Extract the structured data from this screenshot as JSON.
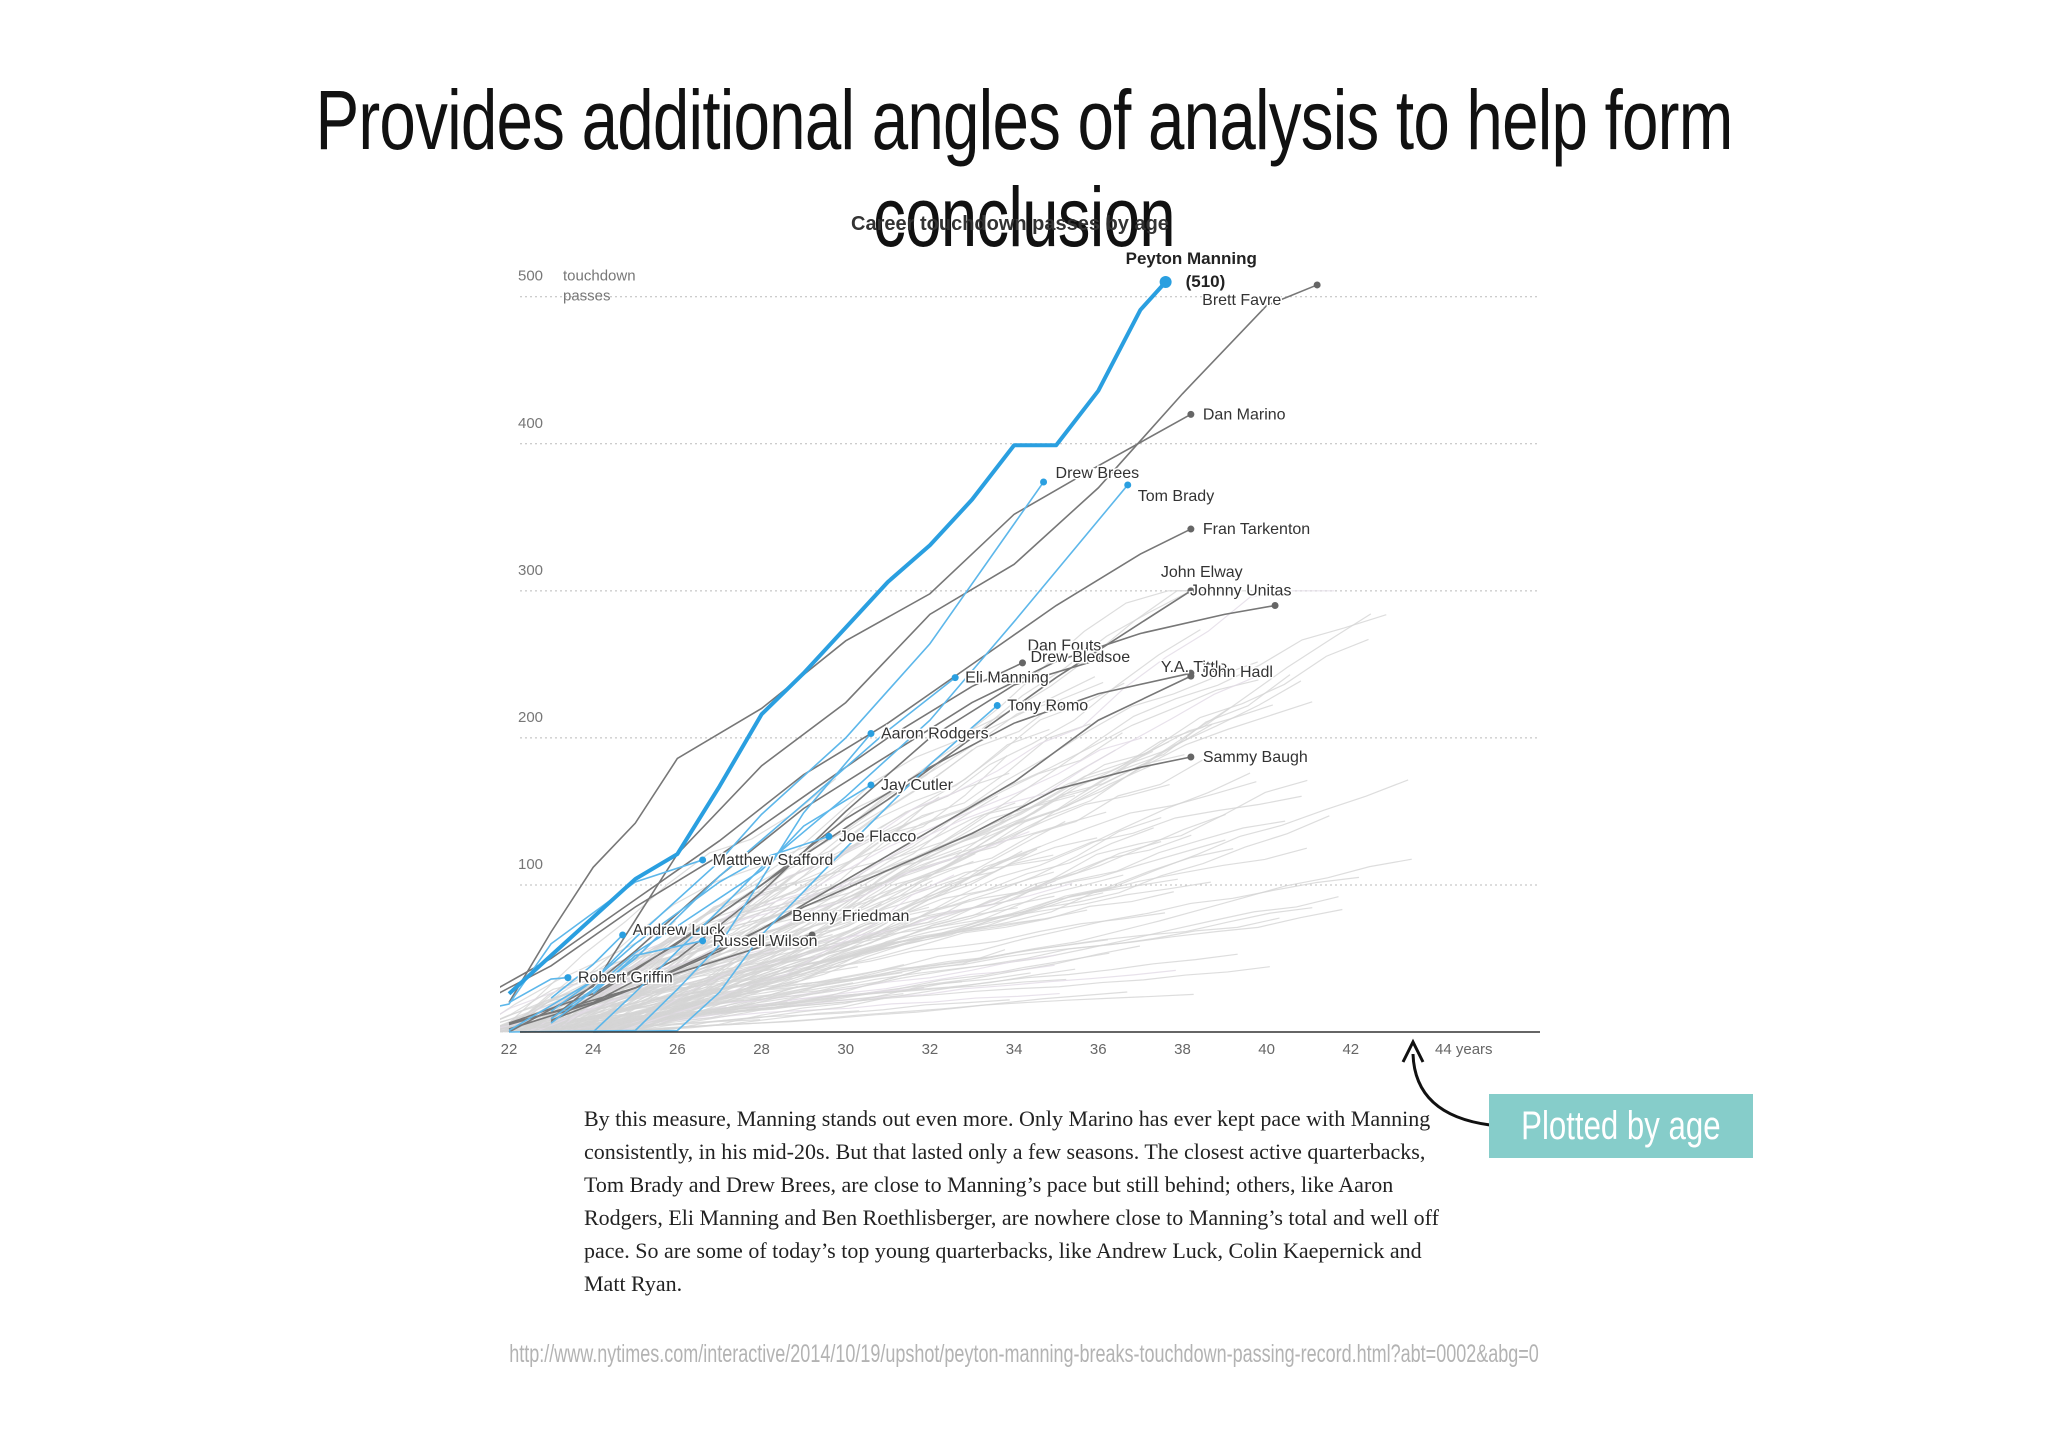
{
  "slide": {
    "title": "Provides additional angles of analysis to help form conclusion",
    "caption": "By this measure, Manning stands out even more. Only Marino has ever kept pace with Manning consistently, in his mid-20s. But that lasted only a few seasons. The closest active quarterbacks, Tom Brady and Drew Brees, are close to Manning’s pace but still behind; others, like Aaron Rodgers, Eli Manning and Ben Roethlisberger, are nowhere close to Manning’s total and well off pace. So are some of today’s top young quarterbacks, like Andrew Luck, Colin Kaepernick and Matt Ryan.",
    "callout": "Plotted by age",
    "source": "http://www.nytimes.com/interactive/2014/10/19/upshot/peyton-manning-breaks-touchdown-passing-record.html?abt=0002&abg=0"
  },
  "colors": {
    "active": "#2a9fe0",
    "active_light": "#5db7ea",
    "retired": "#777777",
    "background_lines": "#d4d4d4",
    "callout_bg": "#86cdca"
  },
  "chart_data": {
    "type": "line",
    "title": "Career touchdown passes by age",
    "ylabel": "touchdown passes",
    "xlabel": "years",
    "xlim": [
      21.8,
      45.5
    ],
    "ylim": [
      0,
      510
    ],
    "x_ticks": [
      22,
      24,
      26,
      28,
      30,
      32,
      34,
      36,
      38,
      40,
      42,
      44
    ],
    "x_tick_labels": [
      "22",
      "24",
      "26",
      "28",
      "30",
      "32",
      "34",
      "36",
      "38",
      "40",
      "42",
      "44 years"
    ],
    "y_ticks": [
      100,
      200,
      300,
      400,
      500
    ],
    "y_tick_labels": [
      "100",
      "200",
      "300",
      "400",
      "500"
    ],
    "grid": true,
    "highlight": {
      "name": "Peyton Manning",
      "label_value": "(510)",
      "x": [
        22,
        23,
        24,
        25,
        26,
        27,
        28,
        29,
        30,
        31,
        32,
        33,
        34,
        35,
        36,
        37,
        37.6
      ],
      "y": [
        26,
        52,
        78,
        104,
        121,
        167,
        216,
        244,
        275,
        306,
        331,
        362,
        399,
        399,
        436,
        491,
        510
      ]
    },
    "series": [
      {
        "name": "Brett Favre",
        "group": "retired",
        "label_value": "",
        "x": [
          22,
          24,
          26,
          28,
          30,
          32,
          34,
          36,
          38,
          40,
          41.2
        ],
        "y": [
          0,
          31,
          121,
          181,
          224,
          284,
          318,
          370,
          434,
          494,
          508
        ]
      },
      {
        "name": "Dan Marino",
        "group": "retired",
        "x": [
          22,
          23,
          24,
          25,
          26,
          28,
          30,
          32,
          34,
          36,
          38.2
        ],
        "y": [
          20,
          68,
          112,
          142,
          186,
          220,
          266,
          298,
          352,
          385,
          420
        ]
      },
      {
        "name": "Fran Tarkenton",
        "group": "retired",
        "x": [
          21,
          23,
          25,
          27,
          29,
          31,
          33,
          35,
          37,
          38.2
        ],
        "y": [
          18,
          50,
          90,
          130,
          175,
          210,
          250,
          290,
          325,
          342
        ]
      },
      {
        "name": "John Elway",
        "group": "retired",
        "x": [
          23,
          25,
          27,
          29,
          31,
          33,
          35,
          37,
          38.2
        ],
        "y": [
          7,
          42,
          80,
          120,
          158,
          200,
          241,
          278,
          300
        ]
      },
      {
        "name": "Johnny Unitas",
        "group": "retired",
        "x": [
          23,
          25,
          27,
          29,
          31,
          33,
          35,
          37,
          39,
          40.2
        ],
        "y": [
          9,
          55,
          106,
          152,
          188,
          224,
          252,
          271,
          284,
          290
        ]
      },
      {
        "name": "Dan Fouts",
        "group": "retired",
        "x": [
          22,
          24,
          26,
          28,
          30,
          32,
          34,
          36.1
        ],
        "y": [
          6,
          20,
          50,
          95,
          150,
          200,
          236,
          254
        ]
      },
      {
        "name": "Drew Bledsoe",
        "group": "retired",
        "x": [
          21,
          23,
          25,
          27,
          29,
          31,
          33,
          34.2
        ],
        "y": [
          15,
          45,
          85,
          120,
          160,
          200,
          235,
          251
        ]
      },
      {
        "name": "Y.A. Tittle",
        "group": "retired",
        "x": [
          22,
          25,
          28,
          31,
          34,
          36,
          38.2
        ],
        "y": [
          5,
          30,
          70,
          120,
          170,
          212,
          242
        ]
      },
      {
        "name": "John Hadl",
        "group": "retired",
        "x": [
          22,
          24,
          26,
          28,
          30,
          32,
          34,
          36,
          38.2
        ],
        "y": [
          6,
          26,
          60,
          100,
          145,
          180,
          210,
          230,
          244
        ]
      },
      {
        "name": "Sammy Baugh",
        "group": "retired",
        "x": [
          23,
          25,
          27,
          29,
          31,
          33,
          35,
          37,
          38.2
        ],
        "y": [
          8,
          30,
          55,
          85,
          110,
          135,
          165,
          180,
          187
        ]
      },
      {
        "name": "Benny Friedman",
        "group": "retired",
        "x": [
          22,
          24,
          26,
          28,
          29.2
        ],
        "y": [
          2,
          20,
          40,
          58,
          66
        ]
      },
      {
        "name": "Drew Brees",
        "group": "active",
        "x": [
          22,
          23,
          24,
          25,
          26,
          27,
          28,
          30,
          32,
          34.7
        ],
        "y": [
          1,
          18,
          35,
          64,
          90,
          116,
          148,
          200,
          264,
          374
        ]
      },
      {
        "name": "Tom Brady",
        "group": "active",
        "x": [
          24,
          25,
          26,
          27,
          28,
          30,
          32,
          34,
          36.7
        ],
        "y": [
          0,
          27,
          55,
          83,
          112,
          160,
          212,
          279,
          372
        ]
      },
      {
        "name": "Eli Manning",
        "group": "active",
        "x": [
          23,
          25,
          27,
          29,
          31,
          32.6
        ],
        "y": [
          6,
          50,
          106,
          155,
          205,
          241
        ]
      },
      {
        "name": "Tony Romo",
        "group": "active",
        "x": [
          24,
          26,
          27,
          28,
          30,
          32,
          33.6
        ],
        "y": [
          0,
          1,
          27,
          66,
          125,
          182,
          222
        ]
      },
      {
        "name": "Aaron Rodgers",
        "group": "active",
        "x": [
          22,
          25,
          26,
          27,
          28,
          29,
          30.6
        ],
        "y": [
          0,
          1,
          29,
          59,
          104,
          149,
          203
        ]
      },
      {
        "name": "Jay Cutler",
        "group": "active",
        "x": [
          23,
          24,
          25,
          26,
          27,
          28,
          29,
          30.6
        ],
        "y": [
          9,
          29,
          54,
          72,
          91,
          110,
          140,
          168
        ]
      },
      {
        "name": "Joe Flacco",
        "group": "active",
        "x": [
          23,
          24,
          25,
          26,
          27,
          28,
          29.6
        ],
        "y": [
          14,
          35,
          60,
          81,
          102,
          118,
          133
        ]
      },
      {
        "name": "Matthew Stafford",
        "group": "active",
        "x": [
          21,
          22,
          23,
          24,
          25,
          26.6
        ],
        "y": [
          13,
          19,
          60,
          81,
          102,
          117
        ]
      },
      {
        "name": "Andrew Luck",
        "group": "active",
        "x": [
          23,
          24,
          24.7
        ],
        "y": [
          23,
          46,
          66
        ]
      },
      {
        "name": "Russell Wilson",
        "group": "active",
        "x": [
          24,
          25,
          26.6
        ],
        "y": [
          26,
          52,
          62
        ]
      },
      {
        "name": "Robert Griffin",
        "group": "active",
        "x": [
          22,
          23,
          23.4
        ],
        "y": [
          20,
          36,
          37
        ]
      }
    ]
  }
}
